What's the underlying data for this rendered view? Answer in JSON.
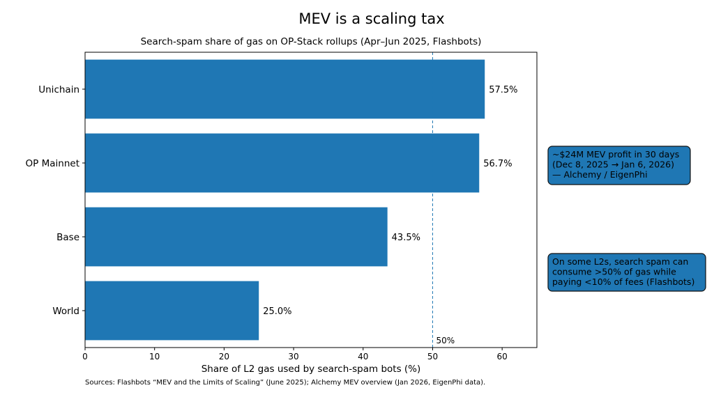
{
  "chart_data": {
    "type": "bar",
    "orientation": "horizontal",
    "title": "MEV is a scaling tax",
    "subtitle": "Search-spam share of gas on OP-Stack rollups (Apr–Jun 2025, Flashbots)",
    "xlabel": "Share of L2 gas used by search-spam bots (%)",
    "ylabel": "",
    "categories": [
      "Unichain",
      "OP Mainnet",
      "Base",
      "World"
    ],
    "values": [
      57.5,
      56.7,
      43.5,
      25.0
    ],
    "data_labels": [
      "57.5%",
      "56.7%",
      "43.5%",
      "25.0%"
    ],
    "xlim": [
      0,
      65
    ],
    "xticks": [
      0,
      10,
      20,
      30,
      40,
      50,
      60
    ],
    "grid": false,
    "bar_color": "#1f77b4",
    "reference_line": {
      "value": 50,
      "label": "50%",
      "style": "dashed",
      "color": "#1f77b4"
    },
    "annotations": [
      {
        "lines": [
          "~$24M MEV profit in 30 days",
          "(Dec 8, 2025 → Jan 6, 2026)",
          "— Alchemy / EigenPhi"
        ]
      },
      {
        "lines": [
          "On some L2s, search spam can",
          "consume >50% of gas while",
          "paying <10% of fees (Flashbots)"
        ]
      }
    ],
    "footnote": "Sources: Flashbots “MEV and the Limits of Scaling” (June 2025); Alchemy MEV overview (Jan 2026, EigenPhi data)."
  }
}
